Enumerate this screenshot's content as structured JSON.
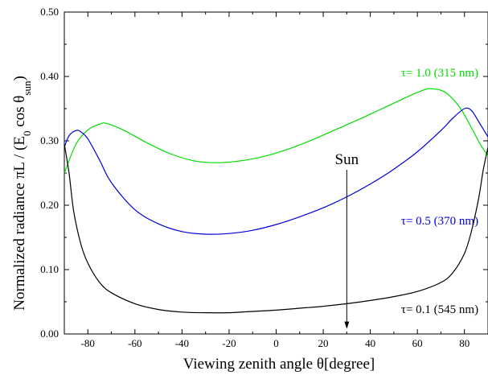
{
  "chart_data": {
    "type": "line",
    "xlabel": "Viewing zenith angle θ[degree]",
    "ylabel": "Normalized radiance   πL / (E",
    "ylabel_sub0": "0",
    "ylabel_mid": " cos θ",
    "ylabel_sub1": "sun",
    "ylabel_end": ")",
    "xlim": [
      -90,
      90
    ],
    "ylim": [
      0,
      0.5
    ],
    "x_ticks": [
      -80,
      -60,
      -40,
      -20,
      0,
      20,
      40,
      60,
      80
    ],
    "y_ticks": [
      0,
      0.1,
      0.2,
      0.3,
      0.4,
      0.5
    ],
    "x_tick_labels": [
      "-80",
      "-60",
      "-40",
      "-20",
      "0",
      "20",
      "40",
      "60",
      "80"
    ],
    "y_tick_labels": [
      "0.00",
      "0.10",
      "0.20",
      "0.30",
      "0.40",
      "0.50"
    ],
    "grid": false,
    "series": [
      {
        "name": "τ= 1.0 (315 nm)",
        "color": "#00dd00",
        "x": [
          -90,
          -85,
          -80,
          -75,
          -72,
          -65,
          -55,
          -45,
          -35,
          -25,
          -15,
          -5,
          5,
          15,
          25,
          35,
          45,
          55,
          62,
          66,
          72,
          78,
          83,
          87,
          90
        ],
        "y": [
          0.25,
          0.295,
          0.317,
          0.326,
          0.327,
          0.317,
          0.297,
          0.28,
          0.269,
          0.266,
          0.269,
          0.276,
          0.287,
          0.301,
          0.317,
          0.333,
          0.35,
          0.367,
          0.378,
          0.381,
          0.375,
          0.352,
          0.32,
          0.293,
          0.277
        ]
      },
      {
        "name": "τ= 0.5 (370 nm)",
        "color": "#0000dd",
        "x": [
          -90,
          -88,
          -85,
          -83,
          -80,
          -75,
          -70,
          -60,
          -50,
          -40,
          -30,
          -20,
          -10,
          0,
          10,
          20,
          30,
          40,
          50,
          60,
          70,
          75,
          80,
          83,
          86,
          90
        ],
        "y": [
          0.29,
          0.308,
          0.316,
          0.314,
          0.303,
          0.27,
          0.235,
          0.193,
          0.171,
          0.159,
          0.155,
          0.156,
          0.161,
          0.17,
          0.182,
          0.196,
          0.213,
          0.233,
          0.256,
          0.283,
          0.316,
          0.335,
          0.35,
          0.347,
          0.33,
          0.306
        ]
      },
      {
        "name": "τ= 0.1 (545 nm)",
        "color": "#000000",
        "x": [
          -90,
          -88,
          -86,
          -83,
          -80,
          -75,
          -70,
          -60,
          -50,
          -40,
          -30,
          -20,
          -10,
          0,
          10,
          20,
          30,
          40,
          50,
          60,
          70,
          75,
          80,
          83,
          86,
          88,
          90
        ],
        "y": [
          0.295,
          0.25,
          0.19,
          0.14,
          0.11,
          0.08,
          0.064,
          0.047,
          0.038,
          0.034,
          0.033,
          0.033,
          0.035,
          0.037,
          0.04,
          0.043,
          0.047,
          0.052,
          0.058,
          0.066,
          0.08,
          0.095,
          0.125,
          0.16,
          0.21,
          0.255,
          0.29
        ]
      }
    ],
    "annotations": {
      "sun": {
        "label": "Sun",
        "x": 30,
        "y_from": 0.255,
        "y_to": 0.008
      }
    }
  }
}
